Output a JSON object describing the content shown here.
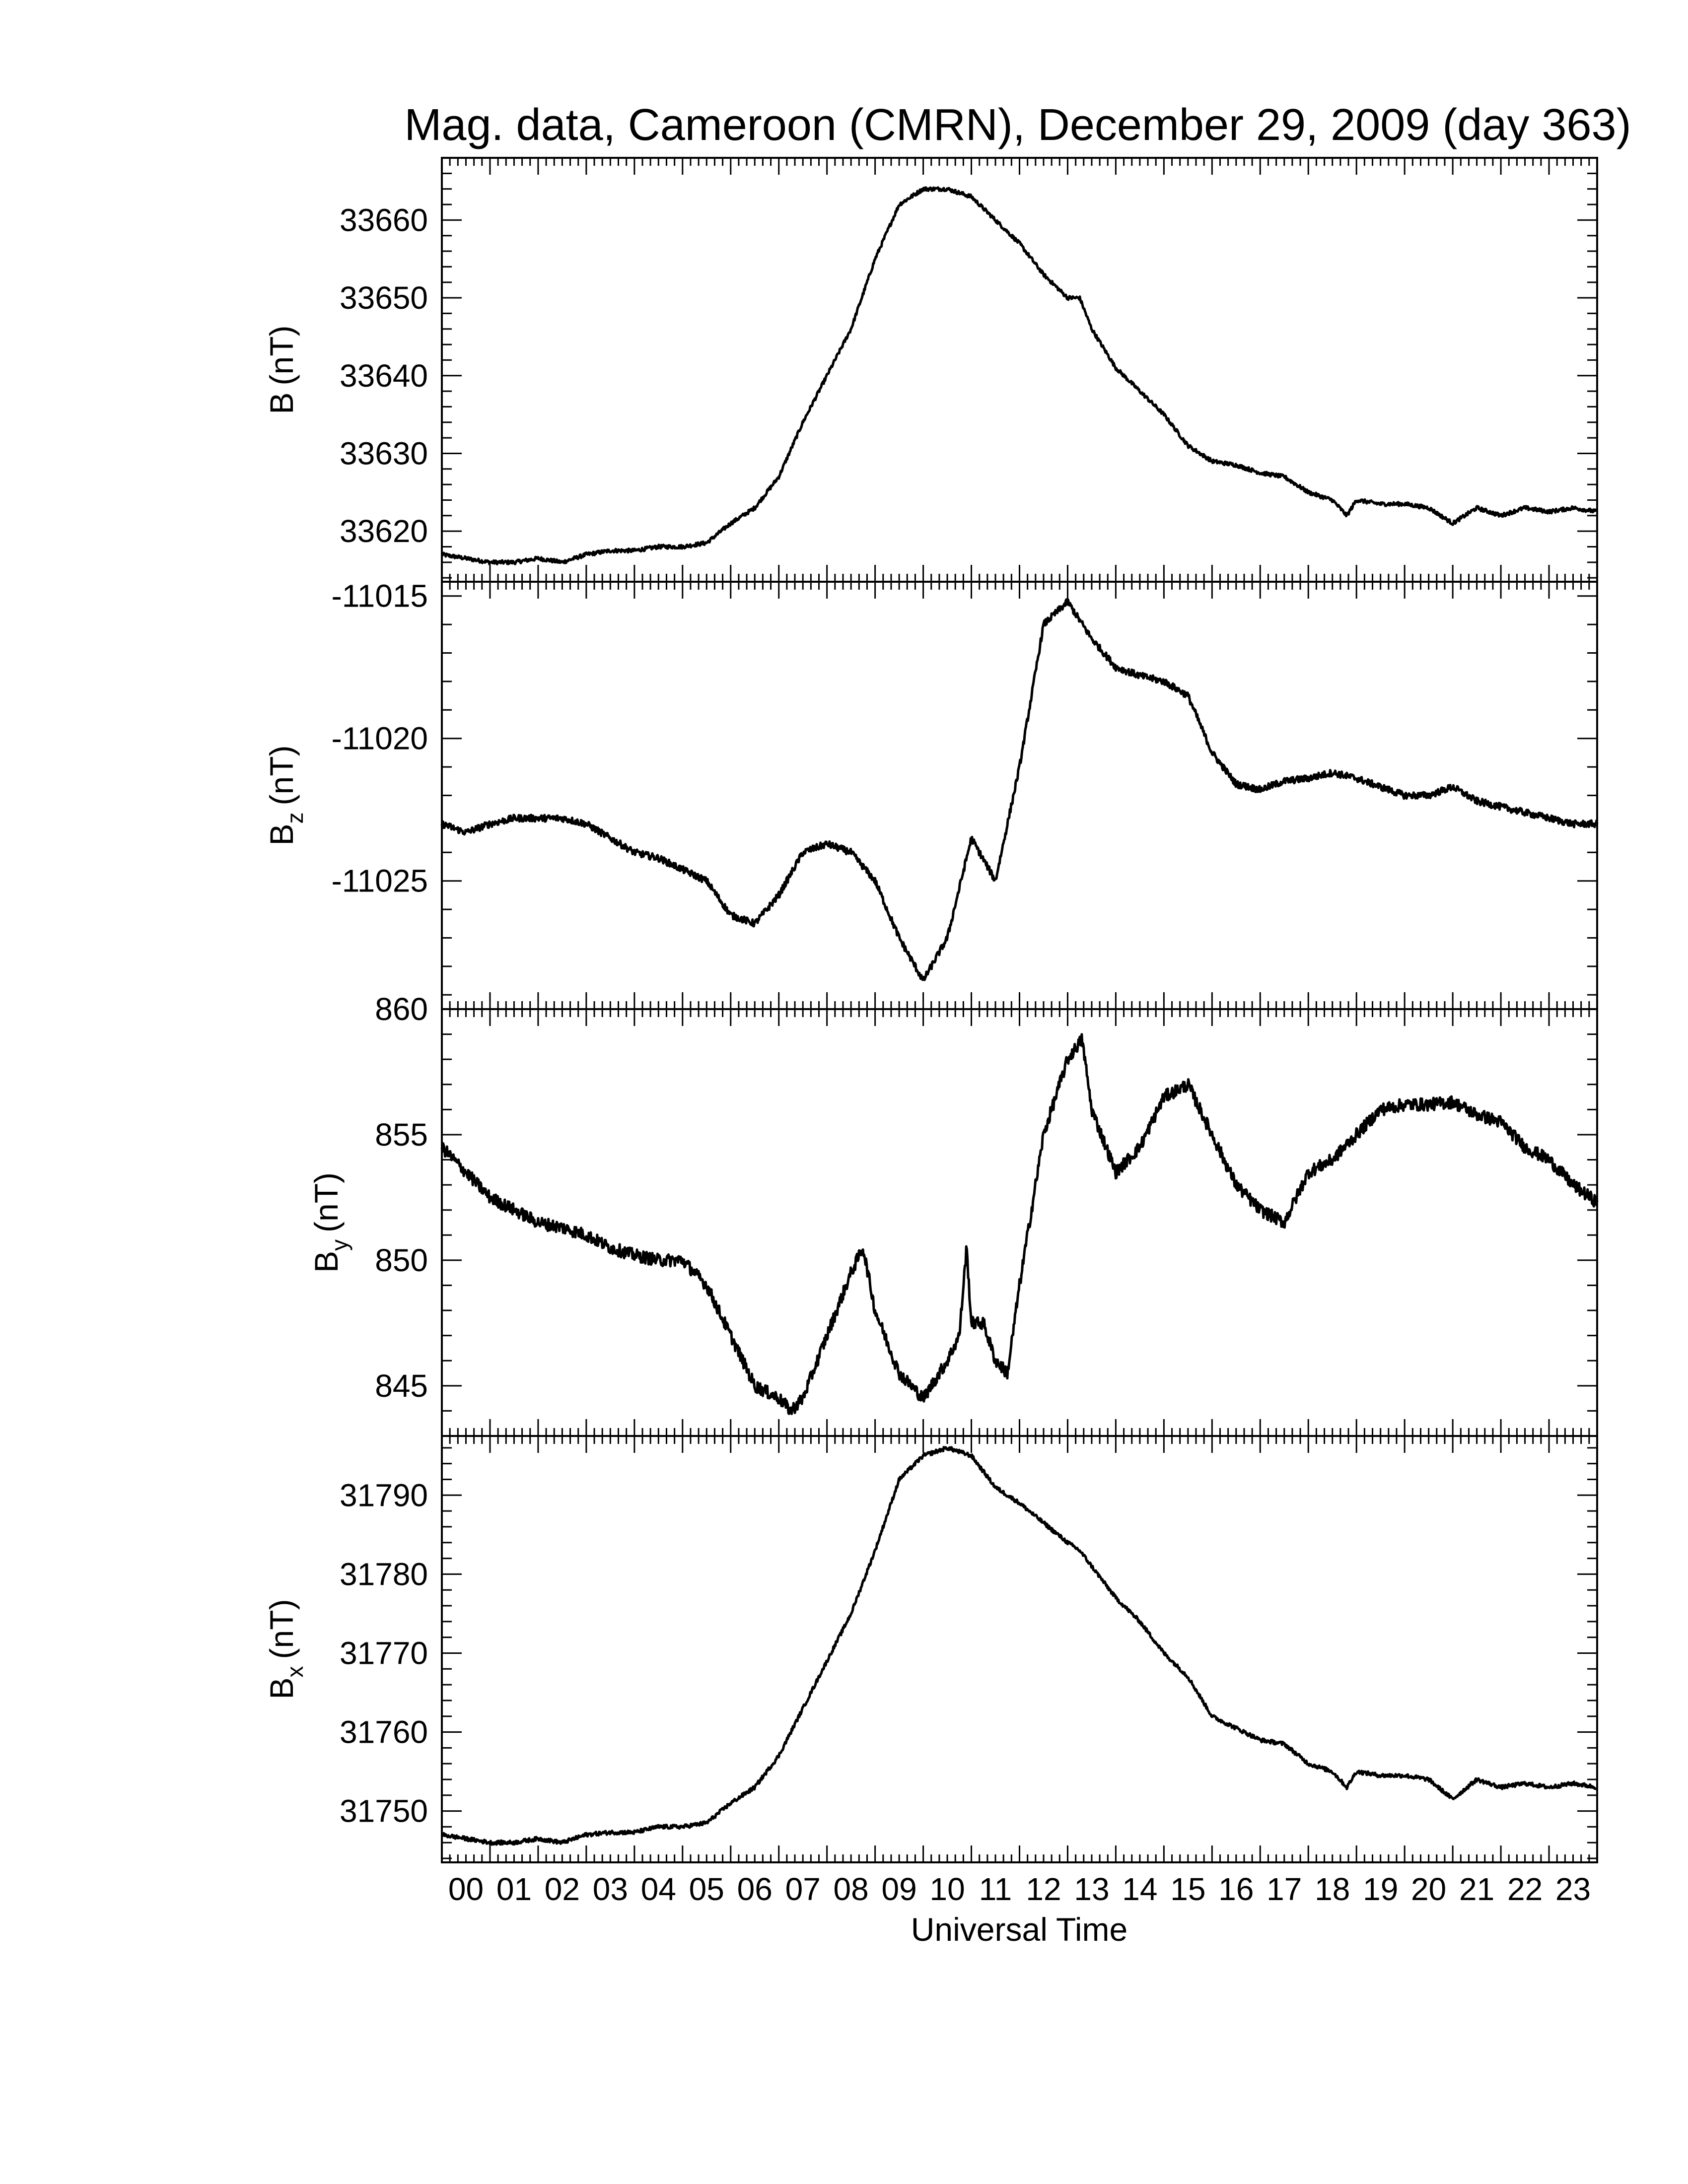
{
  "chart_data": {
    "type": "line",
    "title": "Mag. data, Cameroon (CMRN), December 29, 2009 (day 363)",
    "xlabel": "Universal Time",
    "xlim": [
      0,
      24
    ],
    "x_tick_labels": [
      "00",
      "01",
      "02",
      "03",
      "04",
      "05",
      "06",
      "07",
      "08",
      "09",
      "10",
      "11",
      "12",
      "13",
      "14",
      "15",
      "16",
      "17",
      "18",
      "19",
      "20",
      "21",
      "22",
      "23"
    ],
    "panels": [
      {
        "id": "B",
        "ylabel_main": "B",
        "ylabel_sub": "",
        "ylabel_unit": "(nT)",
        "ylim": [
          33613.5,
          33668
        ],
        "yticks": [
          "33620",
          "33630",
          "33640",
          "33650",
          "33660"
        ],
        "ytick_values": [
          33620,
          33630,
          33640,
          33650,
          33660
        ],
        "x": [
          0,
          0.5,
          1,
          1.5,
          2,
          2.5,
          3,
          3.5,
          4,
          4.5,
          5,
          5.5,
          6,
          6.5,
          7,
          7.5,
          8,
          8.5,
          9,
          9.5,
          10,
          10.5,
          11,
          11.5,
          12,
          12.5,
          13,
          13.25,
          13.5,
          14,
          14.5,
          15,
          15.5,
          16,
          16.5,
          17,
          17.5,
          18,
          18.5,
          18.8,
          19,
          19.5,
          20,
          20.5,
          21,
          21.5,
          22,
          22.5,
          23,
          23.5,
          24
        ],
        "y": [
          33617,
          33616.5,
          33616,
          33616,
          33616.5,
          33616,
          33617,
          33617.5,
          33617.5,
          33618,
          33618,
          33618.5,
          33621,
          33623,
          33627,
          33634,
          33640,
          33646,
          33655,
          33662,
          33664,
          33664,
          33663,
          33660,
          33657,
          33653,
          33650,
          33650,
          33646,
          33641,
          33638,
          33635,
          33631,
          33629,
          33628.5,
          33627.5,
          33627,
          33625,
          33624,
          33622,
          33624,
          33623.5,
          33623.5,
          33623,
          33621,
          33623,
          33622,
          33623,
          33622.5,
          33623,
          33622.5
        ]
      },
      {
        "id": "Bz",
        "ylabel_main": "B",
        "ylabel_sub": "z",
        "ylabel_unit": "(nT)",
        "ylim": [
          -11029.5,
          -11014.5
        ],
        "yticks": [
          "-11015",
          "-11020",
          "-11025"
        ],
        "ytick_values": [
          -11015,
          -11020,
          -11025
        ],
        "x": [
          0,
          0.5,
          1,
          1.5,
          2,
          2.5,
          3,
          3.5,
          4,
          4.5,
          5,
          5.5,
          6,
          6.5,
          7,
          7.5,
          8,
          8.5,
          9,
          9.5,
          10,
          10.5,
          11,
          11.5,
          12,
          12.5,
          13,
          13.5,
          14,
          14.5,
          15,
          15.5,
          16,
          16.5,
          17,
          17.5,
          18,
          18.5,
          19,
          19.5,
          20,
          20.5,
          21,
          21.5,
          22,
          22.5,
          23,
          23.5,
          24
        ],
        "y": [
          -11023,
          -11023.3,
          -11023,
          -11022.8,
          -11022.8,
          -11022.8,
          -11023,
          -11023.5,
          -11024,
          -11024.2,
          -11024.6,
          -11025,
          -11026.2,
          -11026.5,
          -11025.5,
          -11024,
          -11023.7,
          -11024,
          -11025,
          -11027,
          -11028.5,
          -11027,
          -11023.5,
          -11025,
          -11021,
          -11016,
          -11015.2,
          -11016.5,
          -11017.5,
          -11017.8,
          -11018,
          -11018.5,
          -11020.5,
          -11021.6,
          -11021.8,
          -11021.5,
          -11021.4,
          -11021.2,
          -11021.4,
          -11021.7,
          -11022,
          -11022,
          -11021.7,
          -11022.2,
          -11022.4,
          -11022.6,
          -11022.8,
          -11023,
          -11023
        ]
      },
      {
        "id": "By",
        "ylabel_main": "B",
        "ylabel_sub": "y",
        "ylabel_unit": "(nT)",
        "ylim": [
          843,
          860
        ],
        "yticks": [
          "860",
          "855",
          "850",
          "845"
        ],
        "ytick_values": [
          860,
          855,
          850,
          845
        ],
        "x": [
          0,
          0.5,
          1,
          1.5,
          2,
          2.5,
          3,
          3.5,
          4,
          4.5,
          5,
          5.5,
          6,
          6.5,
          7,
          7.25,
          7.5,
          8,
          8.5,
          8.75,
          9,
          9.5,
          10,
          10.5,
          10.75,
          10.9,
          11,
          11.25,
          11.5,
          11.75,
          12,
          12.5,
          13,
          13.3,
          13.5,
          14,
          14.5,
          15,
          15.5,
          16,
          16.5,
          17,
          17.5,
          18,
          18.5,
          19,
          19.5,
          20,
          20.5,
          21,
          21.5,
          22,
          22.5,
          23,
          23.5,
          24
        ],
        "y": [
          854.5,
          853.5,
          852.5,
          852,
          851.5,
          851.3,
          851,
          850.5,
          850.2,
          850,
          850,
          849,
          847,
          845,
          844.5,
          844,
          844.5,
          847,
          849.5,
          850.5,
          848,
          845.5,
          844.5,
          846,
          847,
          850.5,
          847.5,
          847.5,
          846,
          845.5,
          849,
          855,
          858,
          858.8,
          856,
          853.5,
          854.5,
          856.5,
          857,
          855,
          853,
          852,
          851.5,
          853.5,
          854,
          855,
          856,
          856.2,
          856.2,
          856.3,
          855.8,
          855.5,
          854.5,
          854,
          853,
          852.3
        ]
      },
      {
        "id": "Bx",
        "ylabel_main": "B",
        "ylabel_sub": "x",
        "ylabel_unit": "(nT)",
        "ylim": [
          31743.5,
          31797.5
        ],
        "yticks": [
          "31750",
          "31760",
          "31770",
          "31780",
          "31790"
        ],
        "ytick_values": [
          31750,
          31760,
          31770,
          31780,
          31790
        ],
        "x": [
          0,
          0.5,
          1,
          1.5,
          2,
          2.5,
          3,
          3.5,
          4,
          4.5,
          5,
          5.5,
          6,
          6.5,
          7,
          7.5,
          8,
          8.5,
          9,
          9.5,
          10,
          10.5,
          11,
          11.5,
          12,
          12.5,
          13,
          13.25,
          13.5,
          14,
          14.5,
          15,
          15.5,
          16,
          16.5,
          17,
          17.5,
          18,
          18.5,
          18.8,
          19,
          19.5,
          20,
          20.5,
          21,
          21.5,
          22,
          22.5,
          23,
          23.5,
          24
        ],
        "y": [
          31747,
          31746.5,
          31746,
          31746,
          31746.5,
          31746,
          31747,
          31747.3,
          31747.3,
          31748,
          31748,
          31748.5,
          31751,
          31753,
          31757,
          31763,
          31769,
          31775,
          31783,
          31792,
          31795,
          31796,
          31795,
          31791,
          31789,
          31786.5,
          31784,
          31783,
          31781,
          31777,
          31774,
          31770,
          31767,
          31762,
          31760.5,
          31759,
          31758.5,
          31756,
          31755,
          31753,
          31755,
          31754.5,
          31754.5,
          31754,
          31751.5,
          31754,
          31753,
          31753.5,
          31753,
          31753.5,
          31753
        ]
      }
    ]
  }
}
